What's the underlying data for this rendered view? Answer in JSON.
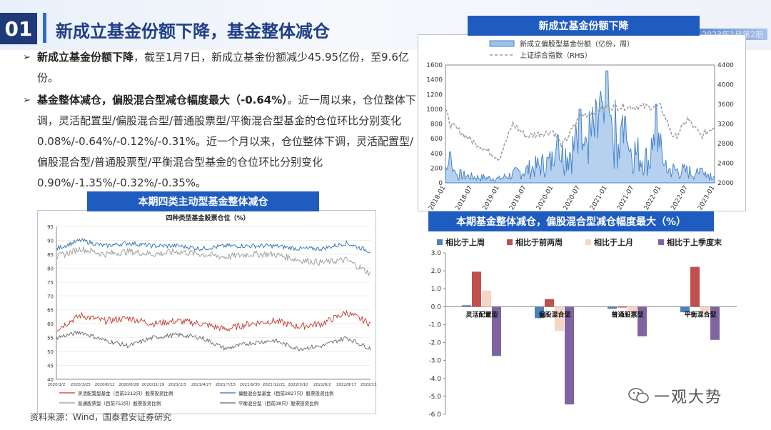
{
  "header": {
    "section_number": "01",
    "title": "新成立基金份额下降，基金整体减仓"
  },
  "bullets": [
    {
      "bold": "新成立基金份额下降",
      "text": "，截至1月7日，新成立基金份额减少45.95亿份，至9.6亿份。"
    },
    {
      "bold": "基金整体减仓，偏股混合型减仓幅度最大（-0.64%）",
      "text": "。近一周以来，仓位整体下调，灵活配置型/偏股混合型/普通股票型/平衡混合型基金的仓位环比分别变化0.08%/-0.64%/-0.12%/-0.31%。近一个月以来，仓位整体下调，灵活配置型/偏股混合型/普通股票型/平衡混合型基金的仓位环比分别变化0.90%/-1.35%/-0.32%/-0.35%。"
    }
  ],
  "top_stripe_text": "2023年1月第2期",
  "source": "资料来源：Wind，国泰君安证券研究",
  "watermark": "一观大势",
  "colors": {
    "navy": "#1f3a78",
    "panel_header": "#1f5cc0",
    "line_blue": "#4a86c8",
    "gray": "#9a9a9a",
    "red": "#c0392b",
    "bar_blue": "#4f81bd",
    "bar_red": "#c0504d",
    "bar_peach": "#f5d5c5",
    "bar_purple": "#8064a2"
  },
  "chart_data": [
    {
      "id": "new_fund",
      "panel_title": "新成立基金份额下降",
      "type": "area",
      "series": [
        {
          "name": "新成立偏股型基金份额（亿份，周）",
          "axis": "left",
          "style": "area"
        },
        {
          "name": "上证综合指数（RHS）",
          "axis": "right",
          "style": "dashed"
        }
      ],
      "x_ticks": [
        "2018-01",
        "2018-07",
        "2019-01",
        "2019-07",
        "2020-01",
        "2020-07",
        "2021-01",
        "2021-07",
        "2022-01",
        "2022-07",
        "2023-01"
      ],
      "ylim": [
        0,
        1600
      ],
      "y_ticks": [
        0,
        200,
        400,
        600,
        800,
        1000,
        1200,
        1400,
        1600
      ],
      "y2lim": [
        2000,
        4400
      ],
      "y2_ticks": [
        2000,
        2400,
        2800,
        3200,
        3600,
        4000,
        4400
      ],
      "half_year_values": [
        140,
        80,
        55,
        170,
        290,
        520,
        780,
        420,
        190,
        150,
        110
      ],
      "peaks": [
        {
          "x": "2018-02",
          "y": 420
        },
        {
          "x": "2020-02",
          "y": 650
        },
        {
          "x": "2020-07",
          "y": 1000
        },
        {
          "x": "2020-12",
          "y": 1100
        },
        {
          "x": "2021-01",
          "y": 1520
        },
        {
          "x": "2021-05",
          "y": 900
        },
        {
          "x": "2021-12",
          "y": 1070
        },
        {
          "x": "2022-01",
          "y": 450
        },
        {
          "x": "2022-10",
          "y": 200
        }
      ],
      "index_values": [
        {
          "x": "2018-01",
          "y": 3480
        },
        {
          "x": "2018-02",
          "y": 3200
        },
        {
          "x": "2018-07",
          "y": 2850
        },
        {
          "x": "2019-01",
          "y": 2500
        },
        {
          "x": "2019-04",
          "y": 3200
        },
        {
          "x": "2019-07",
          "y": 2950
        },
        {
          "x": "2020-01",
          "y": 3050
        },
        {
          "x": "2020-03",
          "y": 2750
        },
        {
          "x": "2020-07",
          "y": 3350
        },
        {
          "x": "2021-01",
          "y": 3550
        },
        {
          "x": "2021-07",
          "y": 3550
        },
        {
          "x": "2022-01",
          "y": 3550
        },
        {
          "x": "2022-04",
          "y": 2900
        },
        {
          "x": "2022-07",
          "y": 3300
        },
        {
          "x": "2022-10",
          "y": 2950
        },
        {
          "x": "2023-01",
          "y": 3150
        }
      ]
    },
    {
      "id": "position",
      "panel_title": "本期四类主动型基金整体减仓",
      "type": "line",
      "title": "四种类型基金股票仓位（%）",
      "ylim": [
        40,
        95
      ],
      "y_ticks": [
        40,
        45,
        50,
        55,
        60,
        65,
        70,
        75,
        80,
        85,
        90,
        95
      ],
      "x_ticks": [
        "2020/1/2",
        "2020/3/25",
        "2020/6/12",
        "2020/8/28",
        "2020/11/19",
        "2021/2/3",
        "2021/4/27",
        "2021/7/15",
        "2021/9/30",
        "2021/12/21",
        "2022/3/10",
        "2022/6/2",
        "2022/8/17",
        "2022/11/8"
      ],
      "series": [
        {
          "name": "灵活配置型基金（目前2212只）股票投资比例",
          "color": "#c0392b",
          "values": [
            58,
            63,
            61,
            62,
            60,
            61,
            60,
            58,
            60,
            61,
            59,
            60,
            64,
            60
          ]
        },
        {
          "name": "偏股混合型基金（目前2827只）股票投资比例",
          "color": "#2d6fb5",
          "values": [
            87,
            90,
            88,
            89,
            88,
            88,
            87,
            88,
            88,
            88,
            87,
            87,
            89,
            86
          ]
        },
        {
          "name": "普通股票型（目前753只）股票投资比例",
          "color": "#9a9a9a",
          "values": [
            84,
            87,
            85,
            86,
            85,
            86,
            85,
            84,
            85,
            85,
            83,
            82,
            83,
            78
          ]
        },
        {
          "name": "平衡混合型（目前38只）股票投资比例",
          "color": "#666666",
          "values": [
            55,
            57,
            54,
            52,
            55,
            56,
            55,
            51,
            53,
            54,
            51,
            52,
            55,
            51
          ]
        }
      ]
    },
    {
      "id": "change",
      "panel_title": "本期基金整体减仓，偏股混合型减仓幅度最大（%）",
      "type": "bar",
      "categories": [
        "灵活配置型",
        "偏股混合型",
        "普通股票型",
        "平衡混合型"
      ],
      "ylim": [
        -6.0,
        3.0
      ],
      "y_ticks": [
        "3.0",
        "2.0",
        "1.0",
        "0.0",
        "-1.0",
        "-2.0",
        "-3.0",
        "-4.0",
        "-5.0",
        "-6.0"
      ],
      "series": [
        {
          "name": "相比于上周",
          "color": "#4f81bd",
          "values": [
            0.08,
            -0.64,
            -0.12,
            -0.31
          ]
        },
        {
          "name": "相比于前两周",
          "color": "#c0504d",
          "values": [
            1.95,
            0.42,
            -0.05,
            2.22
          ]
        },
        {
          "name": "相比于上月",
          "color": "#f5d5c5",
          "values": [
            0.9,
            -1.35,
            -0.32,
            -0.35
          ]
        },
        {
          "name": "相比于上季度末",
          "color": "#8064a2",
          "values": [
            -2.75,
            -5.45,
            -1.65,
            -1.85
          ]
        }
      ]
    }
  ]
}
